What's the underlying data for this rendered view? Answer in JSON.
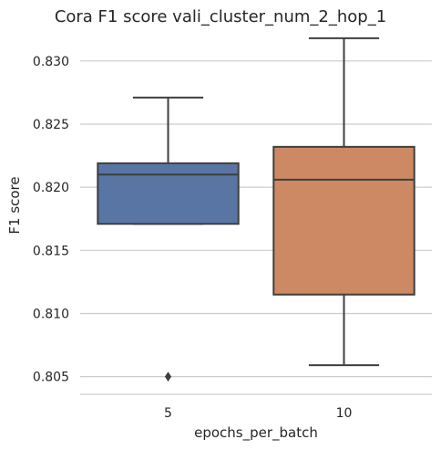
{
  "chart_data": {
    "type": "box",
    "title": "Cora F1 score vali_cluster_num_2_hop_1",
    "xlabel": "epochs_per_batch",
    "ylabel": "F1 score",
    "ylim": [
      0.8036,
      0.8323
    ],
    "yticks": [
      0.805,
      0.81,
      0.815,
      0.82,
      0.825,
      0.83
    ],
    "ytick_labels": [
      "0.805",
      "0.810",
      "0.815",
      "0.820",
      "0.825",
      "0.830"
    ],
    "grid": true,
    "categories": [
      "5",
      "10"
    ],
    "boxes": [
      {
        "category": "5",
        "whisker_low": 0.8171,
        "q1": 0.8171,
        "median": 0.821,
        "q3": 0.8219,
        "whisker_high": 0.8271,
        "outliers": [
          0.805
        ],
        "color": "#5975a4"
      },
      {
        "category": "10",
        "whisker_low": 0.8059,
        "q1": 0.8115,
        "median": 0.8206,
        "q3": 0.8232,
        "whisker_high": 0.8318,
        "outliers": [],
        "color": "#cc8963"
      }
    ]
  }
}
